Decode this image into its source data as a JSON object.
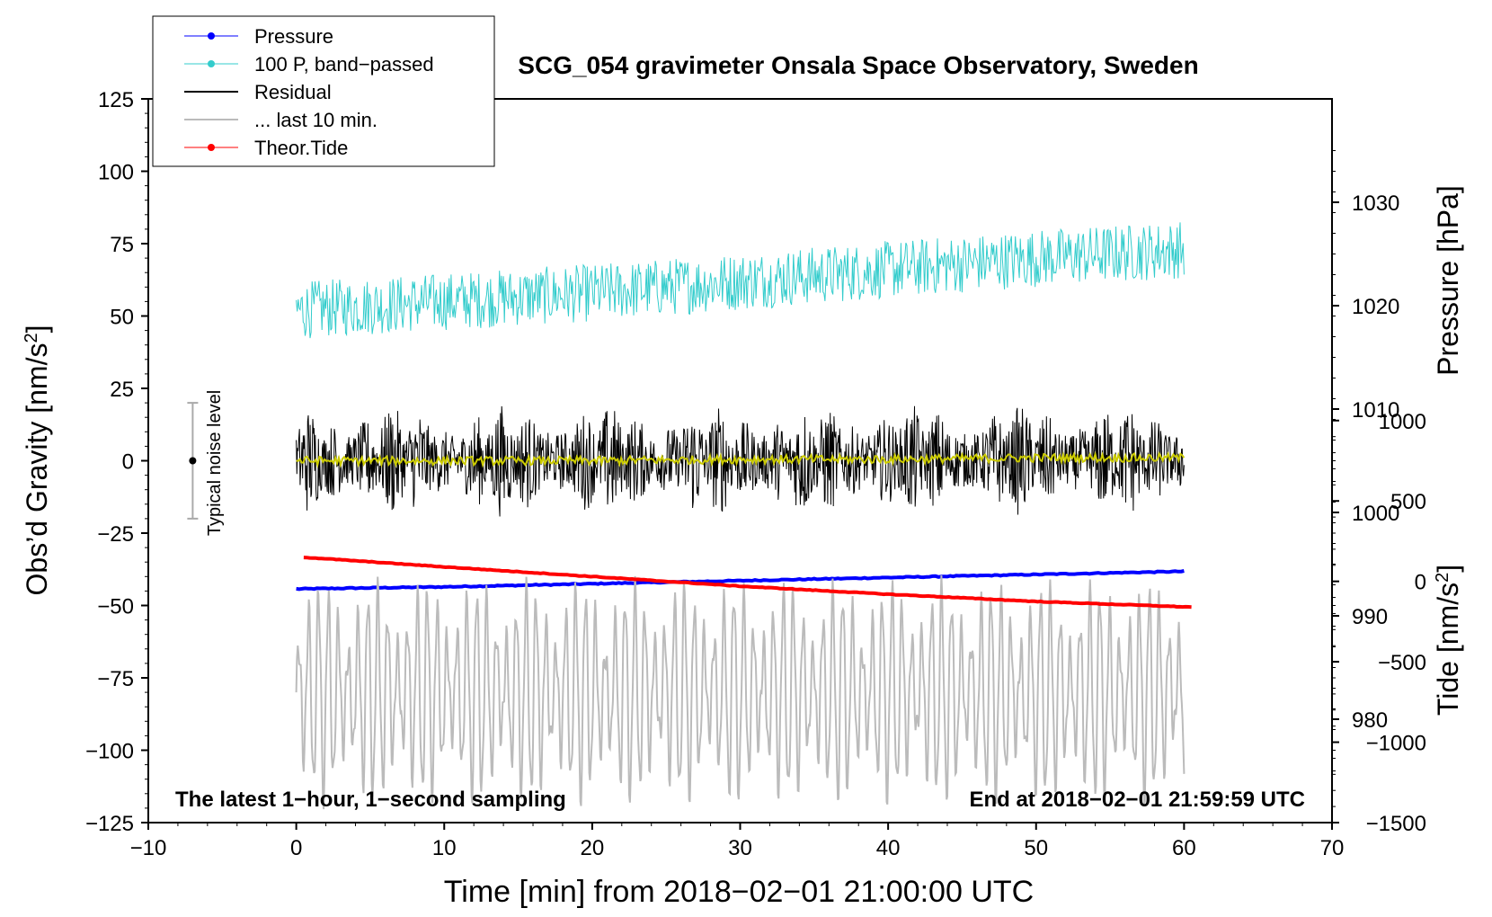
{
  "chart_data": {
    "type": "line",
    "title": "SCG_054 gravimeter Onsala Space Observatory, Sweden",
    "xlabel": "Time [min] from 2018−02−01 21:00:00 UTC",
    "ylabel_left_main": "Obs’d Gravity [nm/s",
    "ylabel_left_sup": "2",
    "ylabel_left_end": "]",
    "ylabel_pressure": "Pressure [hPa]",
    "ylabel_tide_main": "Tide [nm/s",
    "ylabel_tide_sup": "2",
    "ylabel_tide_end": "]",
    "annotation_left": "The latest 1−hour, 1−second sampling",
    "annotation_right": "End at 2018−02−01 21:59:59 UTC",
    "noise_label": "Typical noise level",
    "noise_level": {
      "x": -7,
      "center": 0,
      "half_range": 20
    },
    "xlim": [
      -10,
      70
    ],
    "ylim": [
      -125,
      125
    ],
    "pressure_lim": [
      970,
      1040
    ],
    "tide_lim": [
      -1500,
      3000
    ],
    "x_ticks": [
      "−10",
      "0",
      "10",
      "20",
      "30",
      "40",
      "50",
      "60",
      "70"
    ],
    "y_ticks": [
      "125",
      "100",
      "75",
      "50",
      "25",
      "0",
      "−25",
      "−50",
      "−75",
      "−100",
      "−125"
    ],
    "pressure_ticks": [
      "1030",
      "1020",
      "1010",
      "1000",
      "990",
      "980"
    ],
    "tide_ticks": [
      "1000",
      "500",
      "0",
      "−500",
      "−1000",
      "−1500"
    ],
    "legend_position": "top-left",
    "legend": [
      {
        "label": "Pressure",
        "color": "#0000ff",
        "marker": true
      },
      {
        "label": "100 P, band−passed",
        "color": "#33cccc",
        "marker": true
      },
      {
        "label": "Residual",
        "color": "#000000",
        "marker": false
      },
      {
        "label": "... last 10 min.",
        "color": "#bbbbbb",
        "marker": false
      },
      {
        "label": "Theor.Tide",
        "color": "#ff0000",
        "marker": true
      }
    ],
    "series": [
      {
        "name": "Pressure",
        "axis": "pressure",
        "color": "#0000ff",
        "x": [
          0,
          10,
          20,
          30,
          40,
          50,
          60
        ],
        "values": [
          992.6,
          992.8,
          993.1,
          993.4,
          993.7,
          994.0,
          994.3
        ]
      },
      {
        "name": "100 P, band−passed",
        "axis": "gravity",
        "color": "#33cccc",
        "x": [
          0,
          10,
          20,
          30,
          40,
          50,
          60
        ],
        "values": [
          52,
          55,
          58,
          62,
          66,
          70,
          73
        ],
        "noise_amplitude": 10
      },
      {
        "name": "Residual",
        "axis": "gravity",
        "color": "#000000",
        "x": [
          0,
          10,
          20,
          30,
          40,
          50,
          60
        ],
        "values": [
          0,
          0,
          0,
          0,
          0,
          0,
          0
        ],
        "noise_amplitude": 14
      },
      {
        "name": "Residual smoothed",
        "axis": "gravity",
        "color": "#cccc00",
        "x": [
          0,
          10,
          20,
          30,
          40,
          50,
          60
        ],
        "values": [
          0,
          0,
          0,
          0.5,
          0.5,
          1,
          1
        ],
        "noise_amplitude": 1.5
      },
      {
        "name": "... last 10 min.",
        "axis": "gravity",
        "color": "#bbbbbb",
        "x": [
          0,
          10,
          20,
          30,
          40,
          50,
          60
        ],
        "values": [
          -80,
          -80,
          -80,
          -80,
          -80,
          -80,
          -80
        ],
        "oscillation_amplitude": 25
      },
      {
        "name": "Theor.Tide",
        "axis": "tide",
        "color": "#ff0000",
        "x": [
          0.5,
          10,
          20,
          30,
          40,
          50,
          60.5
        ],
        "values": [
          150,
          90,
          30,
          -30,
          -80,
          -125,
          -160
        ]
      }
    ]
  }
}
